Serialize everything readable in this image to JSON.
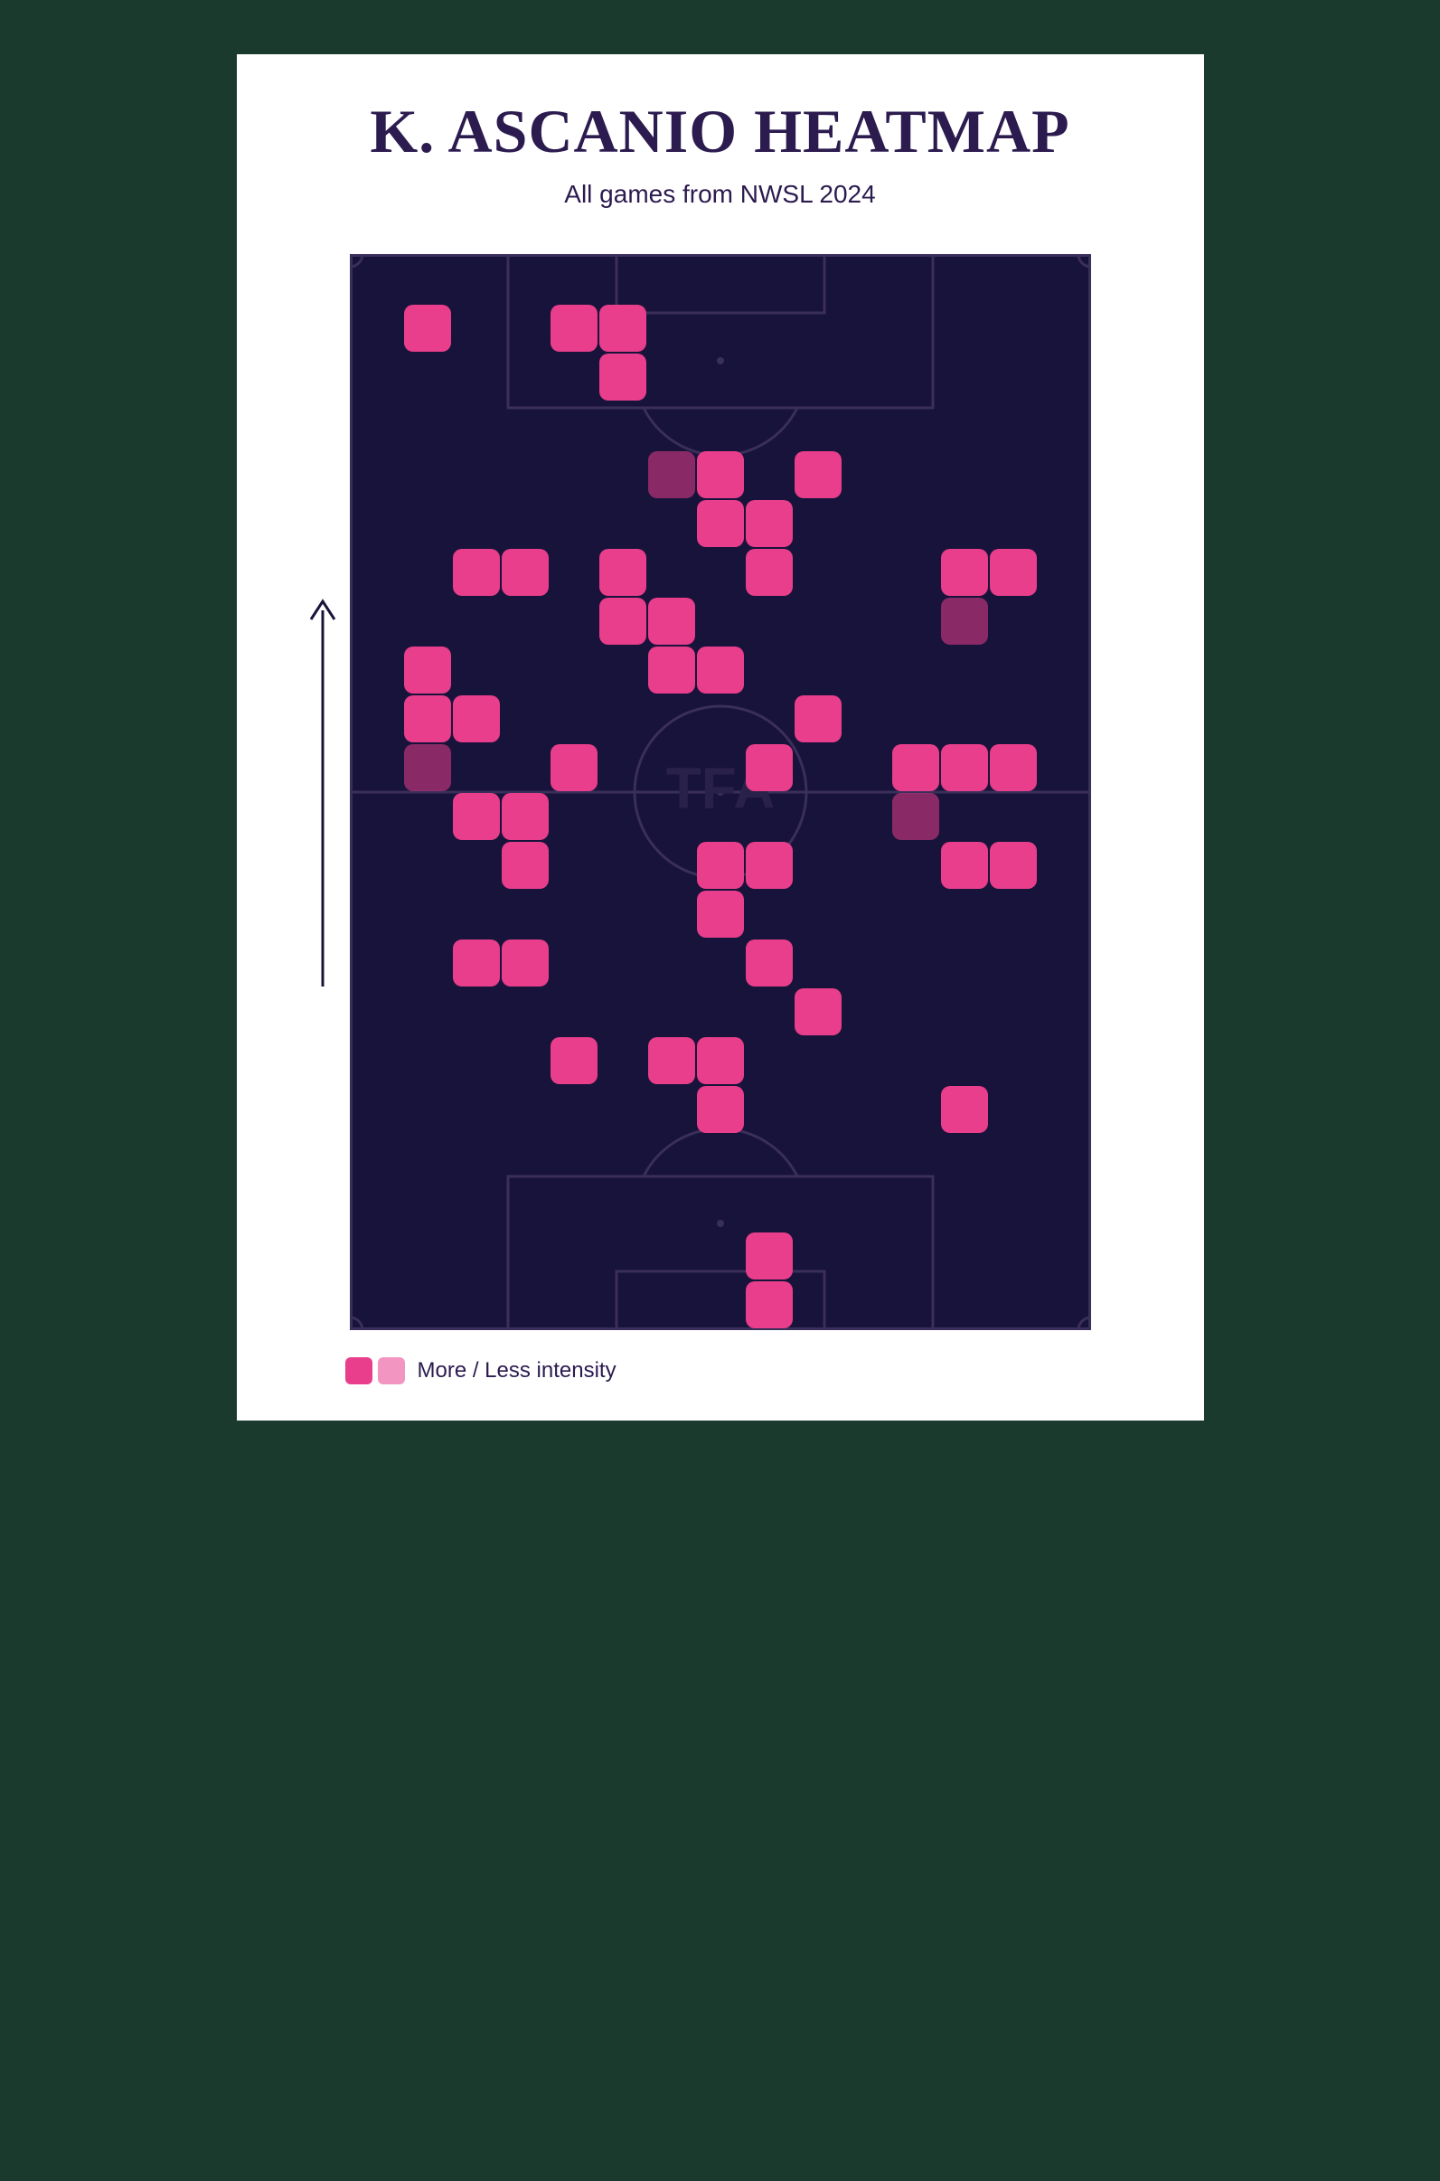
{
  "page": {
    "background_color": "#1a3a2e",
    "card_background": "#ffffff"
  },
  "header": {
    "title": "K. ASCANIO HEATMAP",
    "title_color": "#2b1b4f",
    "title_fontsize": 68,
    "subtitle": "All games from NWSL 2024",
    "subtitle_color": "#2b1b4f",
    "subtitle_fontsize": 28
  },
  "heatmap": {
    "type": "heatmap",
    "pitch_width": 820,
    "pitch_height": 1190,
    "pitch_background": "#18133a",
    "pitch_line_color": "#3a2f5a",
    "pitch_line_width": 3,
    "cell_size": 52,
    "cell_radius": 10,
    "cell_gap": 2,
    "intensities": {
      "high": {
        "color": "#e83e8c",
        "opacity": 1.0
      },
      "low": {
        "color": "#e83e8c",
        "opacity": 0.55
      }
    },
    "watermark": {
      "text": "TFA",
      "color": "#2a214a",
      "fontsize": 64
    },
    "grid_cols": 15,
    "grid_rows": 22,
    "cells": [
      {
        "col": 1,
        "row": 1,
        "intensity": "high"
      },
      {
        "col": 4,
        "row": 1,
        "intensity": "high"
      },
      {
        "col": 5,
        "row": 1,
        "intensity": "high"
      },
      {
        "col": 5,
        "row": 2,
        "intensity": "high"
      },
      {
        "col": 6,
        "row": 4,
        "intensity": "low"
      },
      {
        "col": 7,
        "row": 4,
        "intensity": "high"
      },
      {
        "col": 9,
        "row": 4,
        "intensity": "high"
      },
      {
        "col": 7,
        "row": 5,
        "intensity": "high"
      },
      {
        "col": 8,
        "row": 5,
        "intensity": "high"
      },
      {
        "col": 2,
        "row": 6,
        "intensity": "high"
      },
      {
        "col": 3,
        "row": 6,
        "intensity": "high"
      },
      {
        "col": 5,
        "row": 6,
        "intensity": "high"
      },
      {
        "col": 8,
        "row": 6,
        "intensity": "high"
      },
      {
        "col": 12,
        "row": 6,
        "intensity": "high"
      },
      {
        "col": 13,
        "row": 6,
        "intensity": "high"
      },
      {
        "col": 5,
        "row": 7,
        "intensity": "high"
      },
      {
        "col": 6,
        "row": 7,
        "intensity": "high"
      },
      {
        "col": 12,
        "row": 7,
        "intensity": "low"
      },
      {
        "col": 1,
        "row": 8,
        "intensity": "high"
      },
      {
        "col": 6,
        "row": 8,
        "intensity": "high"
      },
      {
        "col": 7,
        "row": 8,
        "intensity": "high"
      },
      {
        "col": 1,
        "row": 9,
        "intensity": "high"
      },
      {
        "col": 2,
        "row": 9,
        "intensity": "high"
      },
      {
        "col": 9,
        "row": 9,
        "intensity": "high"
      },
      {
        "col": 1,
        "row": 10,
        "intensity": "low"
      },
      {
        "col": 4,
        "row": 10,
        "intensity": "high"
      },
      {
        "col": 8,
        "row": 10,
        "intensity": "high"
      },
      {
        "col": 11,
        "row": 10,
        "intensity": "high"
      },
      {
        "col": 12,
        "row": 10,
        "intensity": "high"
      },
      {
        "col": 13,
        "row": 10,
        "intensity": "high"
      },
      {
        "col": 2,
        "row": 11,
        "intensity": "high"
      },
      {
        "col": 3,
        "row": 11,
        "intensity": "high"
      },
      {
        "col": 11,
        "row": 11,
        "intensity": "low"
      },
      {
        "col": 3,
        "row": 12,
        "intensity": "high"
      },
      {
        "col": 7,
        "row": 12,
        "intensity": "high"
      },
      {
        "col": 8,
        "row": 12,
        "intensity": "high"
      },
      {
        "col": 12,
        "row": 12,
        "intensity": "high"
      },
      {
        "col": 13,
        "row": 12,
        "intensity": "high"
      },
      {
        "col": 7,
        "row": 13,
        "intensity": "high"
      },
      {
        "col": 2,
        "row": 14,
        "intensity": "high"
      },
      {
        "col": 3,
        "row": 14,
        "intensity": "high"
      },
      {
        "col": 8,
        "row": 14,
        "intensity": "high"
      },
      {
        "col": 9,
        "row": 15,
        "intensity": "high"
      },
      {
        "col": 4,
        "row": 16,
        "intensity": "high"
      },
      {
        "col": 6,
        "row": 16,
        "intensity": "high"
      },
      {
        "col": 7,
        "row": 16,
        "intensity": "high"
      },
      {
        "col": 7,
        "row": 17,
        "intensity": "high"
      },
      {
        "col": 12,
        "row": 17,
        "intensity": "high"
      },
      {
        "col": 8,
        "row": 20,
        "intensity": "high"
      },
      {
        "col": 8,
        "row": 21,
        "intensity": "high"
      }
    ]
  },
  "arrow": {
    "color": "#1a133a",
    "length": 430,
    "width": 3
  },
  "legend": {
    "swatch_colors": [
      "#e83e8c",
      "#e83e8c"
    ],
    "swatch_opacities": [
      1.0,
      0.55
    ],
    "swatch_size": 30,
    "swatch_radius": 6,
    "label": "More / Less intensity",
    "label_color": "#2b1b4f",
    "label_fontsize": 24
  }
}
